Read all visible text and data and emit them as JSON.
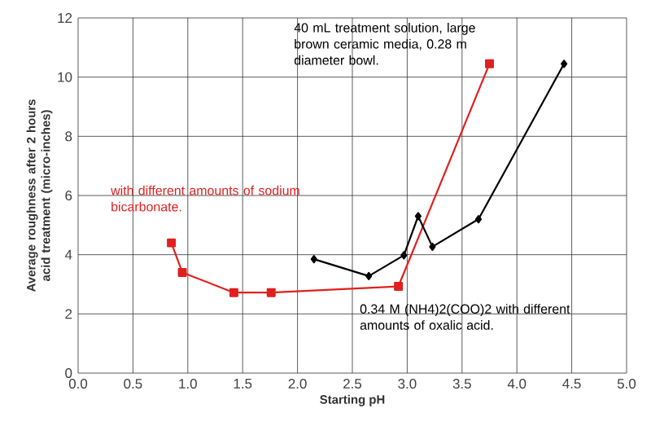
{
  "chart_data": {
    "type": "line",
    "xlabel": "Starting pH",
    "ylabel": "Average roughness after 2 hours acid treatment (micro-inches)",
    "xlim": [
      0,
      5
    ],
    "ylim": [
      0,
      12
    ],
    "xticks": [
      {
        "value": 0,
        "label": "0.0"
      },
      {
        "value": 0.5,
        "label": "0.5"
      },
      {
        "value": 1,
        "label": "1.0"
      },
      {
        "value": 1.5,
        "label": "1.5"
      },
      {
        "value": 2,
        "label": "2.0"
      },
      {
        "value": 2.5,
        "label": "2.5"
      },
      {
        "value": 3,
        "label": "3.0"
      },
      {
        "value": 3.5,
        "label": "3.5"
      },
      {
        "value": 4,
        "label": "4.0"
      },
      {
        "value": 4.5,
        "label": "4.5"
      },
      {
        "value": 5,
        "label": "5.0"
      }
    ],
    "yticks": [
      0,
      2,
      4,
      6,
      8,
      10,
      12
    ],
    "grid": true,
    "legend": false,
    "series": [
      {
        "name": "with different amounts of sodium bicarbonate.",
        "color": "#e02020",
        "marker": "square",
        "x": [
          0.85,
          0.95,
          1.42,
          1.76,
          2.92,
          3.75
        ],
        "values": [
          4.4,
          3.4,
          2.72,
          2.72,
          2.93,
          10.45
        ]
      },
      {
        "name": "0.34 M (NH4)2(COO)2 with different amounts of oxalic acid.",
        "color": "#000000",
        "marker": "diamond",
        "x": [
          2.15,
          2.65,
          2.97,
          3.1,
          3.23,
          3.65,
          4.43
        ],
        "values": [
          3.85,
          3.28,
          3.98,
          5.3,
          4.27,
          5.2,
          10.45
        ]
      }
    ],
    "annotations": [
      "40 mL treatment solution, large brown ceramic media, 0.28 m diameter bowl."
    ]
  }
}
